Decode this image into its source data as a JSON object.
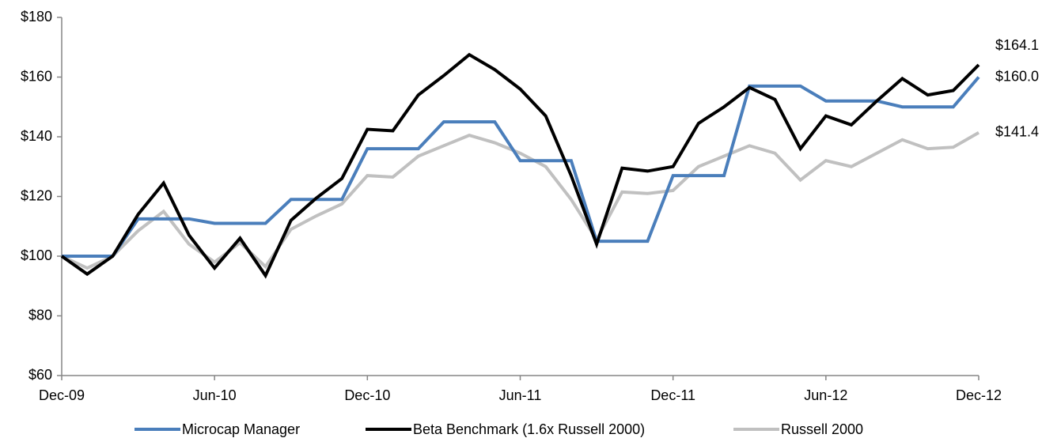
{
  "chart_data": {
    "type": "line",
    "categories": [
      "Dec-09",
      null,
      null,
      null,
      null,
      null,
      "Jun-10",
      null,
      null,
      null,
      null,
      null,
      "Dec-10",
      null,
      null,
      null,
      null,
      null,
      "Jun-11",
      null,
      null,
      null,
      null,
      null,
      "Dec-11",
      null,
      null,
      null,
      null,
      null,
      "Jun-12",
      null,
      null,
      null,
      null,
      null,
      "Dec-12"
    ],
    "ylim": [
      60,
      180
    ],
    "yticks": [
      {
        "value": 60,
        "label": "$60"
      },
      {
        "value": 80,
        "label": "$80"
      },
      {
        "value": 100,
        "label": "$100"
      },
      {
        "value": 120,
        "label": "$120"
      },
      {
        "value": 140,
        "label": "$140"
      },
      {
        "value": 160,
        "label": "$160"
      },
      {
        "value": 180,
        "label": "$180"
      }
    ],
    "grid": false,
    "legend": "bottom",
    "series": [
      {
        "name": "Microcap Manager",
        "color": "#4a7ebb",
        "end_label": "$160.0",
        "values": [
          100,
          100,
          100,
          112.5,
          112.5,
          112.5,
          111,
          111,
          111,
          119,
          119,
          119,
          136,
          136,
          136,
          145,
          145,
          145,
          132,
          132,
          132,
          105,
          105,
          105,
          127,
          127,
          127,
          157,
          157,
          157,
          152,
          152,
          152,
          150,
          150,
          150,
          160
        ]
      },
      {
        "name": "Beta Benchmark (1.6x Russell 2000)",
        "color": "#000000",
        "end_label": "$164.1",
        "values": [
          100,
          94,
          100,
          114,
          124.5,
          107,
          96,
          106,
          93.5,
          112,
          119.5,
          126,
          142.5,
          142,
          154,
          160.5,
          167.5,
          162.5,
          156,
          147,
          127,
          104,
          129.5,
          128.5,
          130,
          144.5,
          150,
          156.5,
          152.5,
          136,
          147,
          144,
          152,
          159.5,
          154,
          155.5,
          164.1
        ]
      },
      {
        "name": "Russell 2000",
        "color": "#c0c0c0",
        "end_label": "$141.4",
        "values": [
          100,
          96,
          100,
          108.5,
          115,
          104,
          98,
          104.5,
          96.5,
          109,
          113.5,
          117.5,
          127,
          126.5,
          133.5,
          137,
          140.5,
          138,
          134.5,
          130,
          119,
          105.5,
          121.5,
          121,
          122,
          130,
          133.5,
          137,
          134.5,
          125.5,
          132,
          130,
          134.5,
          139,
          136,
          136.5,
          141.4
        ]
      }
    ]
  }
}
